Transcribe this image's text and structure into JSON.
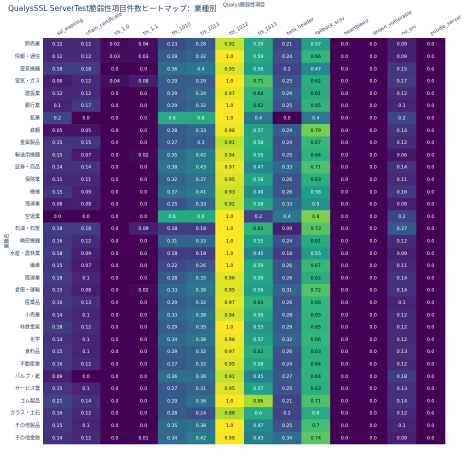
{
  "chart_data": {
    "type": "heatmap",
    "title": "QualysSSL ServerTest脆弱性項目件数ヒートマップ：業種別",
    "x_label": "Qualys脆弱性項目",
    "y_label": "業種名",
    "colorscale": "viridis",
    "zlim": [
      0,
      1
    ],
    "x": [
      "ssl_expiring",
      "chain_certificate",
      "tls_1.0",
      "tls_1.1",
      "tls_1010",
      "tls_1011",
      "tls_1012",
      "tls_1013",
      "hsts_header",
      "fallback_scsv",
      "heartbleed",
      "drown_vulnerable",
      "no_sni",
      "poodle_server"
    ],
    "y": [
      "卸売業",
      "情報・通信",
      "電気機器",
      "電気・ガス",
      "建設業",
      "銀行業",
      "鉱業",
      "鉄鋼",
      "金属製品",
      "輸送用機器",
      "証券・商品",
      "保険業",
      "機械",
      "海運業",
      "空運業",
      "石油・石炭",
      "精密機器",
      "水産・農林業",
      "繊維",
      "陸運業",
      "倉庫・運輸",
      "医薬品",
      "小売業",
      "非鉄金属",
      "化学",
      "食料品",
      "不動産業",
      "パルプ・紙",
      "サービス業",
      "ゴム製品",
      "ガラス・土石",
      "その他製品",
      "その他金融"
    ],
    "z": [
      [
        0.12,
        0.12,
        0.02,
        0.04,
        0.23,
        0.28,
        0.92,
        0.59,
        0.21,
        0.57,
        0,
        0,
        0.09,
        0
      ],
      [
        0.12,
        0.12,
        0.03,
        0.03,
        0.29,
        0.32,
        1,
        0.59,
        0.24,
        0.66,
        0,
        0,
        0.09,
        0
      ],
      [
        0.18,
        0.18,
        0,
        0,
        0.36,
        0.4,
        0.95,
        0.56,
        0.2,
        0.47,
        0,
        0,
        0.15,
        0
      ],
      [
        0.08,
        0.12,
        0.04,
        0.08,
        0.29,
        0.29,
        1,
        0.71,
        0.25,
        0.62,
        0,
        0,
        0.17,
        0
      ],
      [
        0.12,
        0.12,
        0,
        0,
        0.29,
        0.34,
        0.97,
        0.64,
        0.29,
        0.61,
        0,
        0,
        0.12,
        0
      ],
      [
        0.1,
        0.17,
        0,
        0,
        0.29,
        0.32,
        1,
        0.62,
        0.25,
        0.65,
        0,
        0,
        0.1,
        0
      ],
      [
        0.2,
        0,
        0,
        0,
        0.6,
        0.6,
        1,
        0.4,
        0,
        0.4,
        0,
        0,
        0.2,
        0
      ],
      [
        0.05,
        0.05,
        0,
        0,
        0.28,
        0.33,
        0.98,
        0.57,
        0.29,
        0.79,
        0,
        0,
        0.14,
        0
      ],
      [
        0.15,
        0.15,
        0,
        0,
        0.27,
        0.3,
        0.91,
        0.58,
        0.24,
        0.67,
        0,
        0,
        0.12,
        0
      ],
      [
        0.15,
        0.07,
        0,
        0.02,
        0.35,
        0.42,
        0.94,
        0.55,
        0.25,
        0.64,
        0,
        0,
        0.06,
        0
      ],
      [
        0.14,
        0.14,
        0,
        0,
        0.38,
        0.43,
        0.97,
        0.47,
        0.33,
        0.71,
        0,
        0,
        0.14,
        0
      ],
      [
        0.11,
        0.11,
        0,
        0,
        0.32,
        0.37,
        0.95,
        0.58,
        0.26,
        0.63,
        0,
        0,
        0.11,
        0
      ],
      [
        0.15,
        0.09,
        0,
        0,
        0.37,
        0.41,
        0.93,
        0.49,
        0.26,
        0.56,
        0,
        0,
        0.16,
        0
      ],
      [
        0.08,
        0.08,
        0,
        0,
        0.25,
        0.33,
        0.92,
        0.58,
        0.33,
        0.5,
        0,
        0,
        0.08,
        0
      ],
      [
        0,
        0,
        0,
        0,
        0.6,
        0.6,
        1,
        0.2,
        0.4,
        0.8,
        0,
        0,
        0.2,
        0
      ],
      [
        0.18,
        0.18,
        0,
        0.09,
        0.18,
        0.18,
        1,
        0.64,
        0.09,
        0.73,
        0,
        0,
        0.27,
        0
      ],
      [
        0.16,
        0.12,
        0,
        0,
        0.31,
        0.33,
        1,
        0.55,
        0.24,
        0.61,
        0,
        0,
        0.12,
        0
      ],
      [
        0.18,
        0.09,
        0,
        0,
        0.18,
        0.18,
        1,
        0.45,
        0.18,
        0.55,
        0,
        0,
        0.09,
        0
      ],
      [
        0.15,
        0.07,
        0,
        0,
        0.22,
        0.26,
        1,
        0.59,
        0.26,
        0.67,
        0,
        0,
        0.11,
        0
      ],
      [
        0.18,
        0.1,
        0,
        0,
        0.28,
        0.35,
        0.96,
        0.59,
        0.26,
        0.62,
        0,
        0,
        0.14,
        0
      ],
      [
        0.15,
        0.08,
        0,
        0.02,
        0.33,
        0.39,
        0.95,
        0.56,
        0.31,
        0.72,
        0,
        0,
        0.14,
        0
      ],
      [
        0.16,
        0.13,
        0,
        0,
        0.29,
        0.32,
        0.97,
        0.64,
        0.26,
        0.66,
        0,
        0,
        0.1,
        0
      ],
      [
        0.14,
        0.1,
        0,
        0,
        0.33,
        0.38,
        0.94,
        0.59,
        0.28,
        0.65,
        0,
        0,
        0.12,
        0
      ],
      [
        0.18,
        0.12,
        0,
        0,
        0.29,
        0.35,
        1,
        0.53,
        0.29,
        0.65,
        0,
        0,
        0.12,
        0
      ],
      [
        0.14,
        0.1,
        0,
        0,
        0.34,
        0.38,
        0.98,
        0.57,
        0.32,
        0.66,
        0,
        0,
        0.12,
        0
      ],
      [
        0.15,
        0.1,
        0,
        0,
        0.29,
        0.32,
        0.97,
        0.62,
        0.26,
        0.63,
        0,
        0,
        0.13,
        0
      ],
      [
        0.16,
        0.12,
        0,
        0,
        0.27,
        0.32,
        0.95,
        0.58,
        0.24,
        0.64,
        0,
        0,
        0.12,
        0
      ],
      [
        0.09,
        0,
        0,
        0,
        0.36,
        0.36,
        0.91,
        0.45,
        0.27,
        0.64,
        0,
        0,
        0.18,
        0
      ],
      [
        0.15,
        0.1,
        0,
        0,
        0.27,
        0.31,
        0.95,
        0.57,
        0.25,
        0.63,
        0,
        0,
        0.13,
        0
      ],
      [
        0.21,
        0.14,
        0,
        0,
        0.29,
        0.36,
        1,
        0.86,
        0.21,
        0.71,
        0,
        0,
        0.14,
        0
      ],
      [
        0.16,
        0.12,
        0,
        0,
        0.28,
        0.24,
        0.88,
        0.6,
        0.2,
        0.6,
        0,
        0,
        0.12,
        0
      ],
      [
        0.15,
        0.1,
        0,
        0,
        0.35,
        0.38,
        1,
        0.47,
        0.25,
        0.7,
        0,
        0,
        0.1,
        0
      ],
      [
        0.14,
        0.12,
        0,
        0.01,
        0.34,
        0.42,
        0.99,
        0.43,
        0.34,
        0.74,
        0,
        0,
        0.09,
        0
      ]
    ],
    "value_labels": [
      [
        "0.12",
        "0.12",
        "0.02",
        "0.04",
        "0.23",
        "0.28",
        "0.92",
        "0.59",
        "0.21",
        "0.57",
        "0.0",
        "0.0",
        "0.09",
        "0.0"
      ],
      [
        "0.12",
        "0.12",
        "0.03",
        "0.03",
        "0.29",
        "0.32",
        "1.0",
        "0.59",
        "0.24",
        "0.66",
        "0.0",
        "0.0",
        "0.09",
        "0.0"
      ],
      [
        "0.18",
        "0.18",
        "0.0",
        "0.0",
        "0.36",
        "0.4",
        "0.95",
        "0.56",
        "0.2",
        "0.47",
        "0.0",
        "0.0",
        "0.15",
        "0.0"
      ],
      [
        "0.08",
        "0.12",
        "0.04",
        "0.08",
        "0.29",
        "0.29",
        "1.0",
        "0.71",
        "0.25",
        "0.62",
        "0.0",
        "0.0",
        "0.17",
        "0.0"
      ],
      [
        "0.12",
        "0.12",
        "0.0",
        "0.0",
        "0.29",
        "0.34",
        "0.97",
        "0.64",
        "0.29",
        "0.61",
        "0.0",
        "0.0",
        "0.12",
        "0.0"
      ],
      [
        "0.1",
        "0.17",
        "0.0",
        "0.0",
        "0.29",
        "0.32",
        "1.0",
        "0.62",
        "0.25",
        "0.65",
        "0.0",
        "0.0",
        "0.1",
        "0.0"
      ],
      [
        "0.2",
        "0.0",
        "0.0",
        "0.0",
        "0.6",
        "0.6",
        "1.0",
        "0.4",
        "0.0",
        "0.4",
        "0.0",
        "0.0",
        "0.2",
        "0.0"
      ],
      [
        "0.05",
        "0.05",
        "0.0",
        "0.0",
        "0.28",
        "0.33",
        "0.98",
        "0.57",
        "0.29",
        "0.79",
        "0.0",
        "0.0",
        "0.14",
        "0.0"
      ],
      [
        "0.15",
        "0.15",
        "0.0",
        "0.0",
        "0.27",
        "0.3",
        "0.91",
        "0.58",
        "0.24",
        "0.67",
        "0.0",
        "0.0",
        "0.12",
        "0.0"
      ],
      [
        "0.15",
        "0.07",
        "0.0",
        "0.02",
        "0.35",
        "0.42",
        "0.94",
        "0.55",
        "0.25",
        "0.64",
        "0.0",
        "0.0",
        "0.06",
        "0.0"
      ],
      [
        "0.14",
        "0.14",
        "0.0",
        "0.0",
        "0.38",
        "0.43",
        "0.97",
        "0.47",
        "0.33",
        "0.71",
        "0.0",
        "0.0",
        "0.14",
        "0.0"
      ],
      [
        "0.11",
        "0.11",
        "0.0",
        "0.0",
        "0.32",
        "0.37",
        "0.95",
        "0.58",
        "0.26",
        "0.63",
        "0.0",
        "0.0",
        "0.11",
        "0.0"
      ],
      [
        "0.15",
        "0.09",
        "0.0",
        "0.0",
        "0.37",
        "0.41",
        "0.93",
        "0.49",
        "0.26",
        "0.56",
        "0.0",
        "0.0",
        "0.16",
        "0.0"
      ],
      [
        "0.08",
        "0.08",
        "0.0",
        "0.0",
        "0.25",
        "0.33",
        "0.92",
        "0.58",
        "0.33",
        "0.5",
        "0.0",
        "0.0",
        "0.08",
        "0.0"
      ],
      [
        "0.0",
        "0.0",
        "0.0",
        "0.0",
        "0.6",
        "0.6",
        "1.0",
        "0.2",
        "0.4",
        "0.8",
        "0.0",
        "0.0",
        "0.2",
        "0.0"
      ],
      [
        "0.18",
        "0.18",
        "0.0",
        "0.09",
        "0.18",
        "0.18",
        "1.0",
        "0.64",
        "0.09",
        "0.73",
        "0.0",
        "0.0",
        "0.27",
        "0.0"
      ],
      [
        "0.16",
        "0.12",
        "0.0",
        "0.0",
        "0.31",
        "0.33",
        "1.0",
        "0.55",
        "0.24",
        "0.61",
        "0.0",
        "0.0",
        "0.12",
        "0.0"
      ],
      [
        "0.18",
        "0.09",
        "0.0",
        "0.0",
        "0.18",
        "0.18",
        "1.0",
        "0.45",
        "0.18",
        "0.55",
        "0.0",
        "0.0",
        "0.09",
        "0.0"
      ],
      [
        "0.15",
        "0.07",
        "0.0",
        "0.0",
        "0.22",
        "0.26",
        "1.0",
        "0.59",
        "0.26",
        "0.67",
        "0.0",
        "0.0",
        "0.11",
        "0.0"
      ],
      [
        "0.18",
        "0.1",
        "0.0",
        "0.0",
        "0.28",
        "0.35",
        "0.96",
        "0.59",
        "0.26",
        "0.62",
        "0.0",
        "0.0",
        "0.14",
        "0.0"
      ],
      [
        "0.15",
        "0.08",
        "0.0",
        "0.02",
        "0.33",
        "0.39",
        "0.95",
        "0.56",
        "0.31",
        "0.72",
        "0.0",
        "0.0",
        "0.14",
        "0.0"
      ],
      [
        "0.16",
        "0.13",
        "0.0",
        "0.0",
        "0.29",
        "0.32",
        "0.97",
        "0.64",
        "0.26",
        "0.66",
        "0.0",
        "0.0",
        "0.1",
        "0.0"
      ],
      [
        "0.14",
        "0.1",
        "0.0",
        "0.0",
        "0.33",
        "0.38",
        "0.94",
        "0.59",
        "0.28",
        "0.65",
        "0.0",
        "0.0",
        "0.12",
        "0.0"
      ],
      [
        "0.18",
        "0.12",
        "0.0",
        "0.0",
        "0.29",
        "0.35",
        "1.0",
        "0.53",
        "0.29",
        "0.65",
        "0.0",
        "0.0",
        "0.12",
        "0.0"
      ],
      [
        "0.14",
        "0.1",
        "0.0",
        "0.0",
        "0.34",
        "0.38",
        "0.98",
        "0.57",
        "0.32",
        "0.66",
        "0.0",
        "0.0",
        "0.12",
        "0.0"
      ],
      [
        "0.15",
        "0.1",
        "0.0",
        "0.0",
        "0.29",
        "0.32",
        "0.97",
        "0.62",
        "0.26",
        "0.63",
        "0.0",
        "0.0",
        "0.13",
        "0.0"
      ],
      [
        "0.16",
        "0.12",
        "0.0",
        "0.0",
        "0.27",
        "0.32",
        "0.95",
        "0.58",
        "0.24",
        "0.64",
        "0.0",
        "0.0",
        "0.12",
        "0.0"
      ],
      [
        "0.09",
        "0.0",
        "0.0",
        "0.0",
        "0.36",
        "0.36",
        "0.91",
        "0.45",
        "0.27",
        "0.64",
        "0.0",
        "0.0",
        "0.18",
        "0.0"
      ],
      [
        "0.15",
        "0.1",
        "0.0",
        "0.0",
        "0.27",
        "0.31",
        "0.95",
        "0.57",
        "0.25",
        "0.63",
        "0.0",
        "0.0",
        "0.13",
        "0.0"
      ],
      [
        "0.21",
        "0.14",
        "0.0",
        "0.0",
        "0.29",
        "0.36",
        "1.0",
        "0.86",
        "0.21",
        "0.71",
        "0.0",
        "0.0",
        "0.14",
        "0.0"
      ],
      [
        "0.16",
        "0.12",
        "0.0",
        "0.0",
        "0.28",
        "0.24",
        "0.88",
        "0.6",
        "0.2",
        "0.6",
        "0.0",
        "0.0",
        "0.12",
        "0.0"
      ],
      [
        "0.15",
        "0.1",
        "0.0",
        "0.0",
        "0.35",
        "0.38",
        "1.0",
        "0.47",
        "0.25",
        "0.7",
        "0.0",
        "0.0",
        "0.1",
        "0.0"
      ],
      [
        "0.14",
        "0.12",
        "0.0",
        "0.01",
        "0.34",
        "0.42",
        "0.99",
        "0.43",
        "0.34",
        "0.74",
        "0.0",
        "0.0",
        "0.09",
        "0.0"
      ]
    ]
  }
}
